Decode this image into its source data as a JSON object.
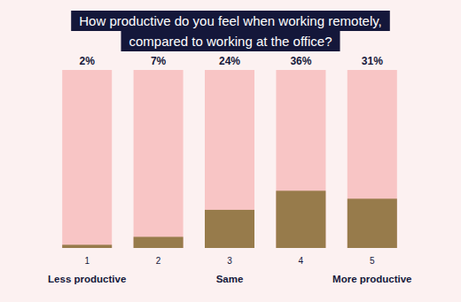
{
  "chart_data": {
    "type": "bar",
    "title": "How productive do you feel when working remotely,\ncompared to working at the office?",
    "categories": [
      "1",
      "2",
      "3",
      "4",
      "5"
    ],
    "values": [
      2,
      7,
      24,
      36,
      31
    ],
    "value_labels": [
      "2%",
      "7%",
      "24%",
      "36%",
      "31%"
    ],
    "data_labels": true,
    "color": "#977b4b",
    "ylim": [
      0,
      112
    ],
    "tick_labels": "x",
    "grid": false,
    "annotations": [
      {
        "text": "Less productive",
        "at": "1"
      },
      {
        "text": "Same",
        "at": "3"
      },
      {
        "text": "More productive",
        "at": "5"
      }
    ]
  }
}
